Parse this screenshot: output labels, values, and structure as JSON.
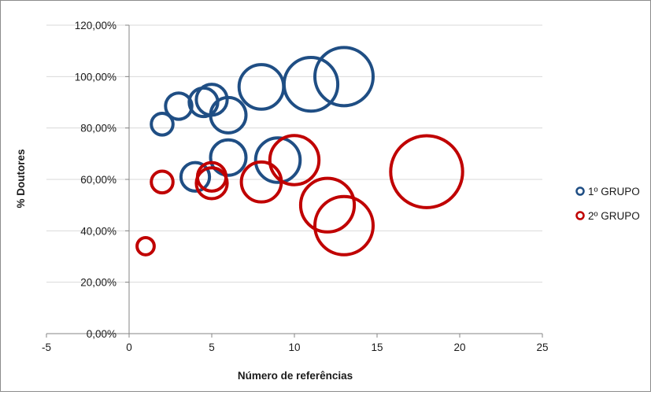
{
  "chart_data": {
    "type": "bubble",
    "title": "",
    "xlabel": "Número de referências",
    "ylabel": "% Doutores",
    "xlim": [
      -5,
      25
    ],
    "ylim": [
      0,
      120
    ],
    "x_ticks": [
      "-5",
      "0",
      "5",
      "10",
      "15",
      "20",
      "25"
    ],
    "y_ticks": [
      "0,00%",
      "20,00%",
      "40,00%",
      "60,00%",
      "80,00%",
      "100,00%",
      "120,00%"
    ],
    "grid": "horizontal",
    "legend_position": "right",
    "series": [
      {
        "name": "1º GRUPO",
        "color": "#1f4e84",
        "points": [
          {
            "x": 2,
            "y": 81.5,
            "size": 2
          },
          {
            "x": 3,
            "y": 88.5,
            "size": 3
          },
          {
            "x": 4,
            "y": 61,
            "size": 3.5
          },
          {
            "x": 4.5,
            "y": 90,
            "size": 3.5
          },
          {
            "x": 5,
            "y": 91,
            "size": 4
          },
          {
            "x": 6,
            "y": 85,
            "size": 5
          },
          {
            "x": 6,
            "y": 68.5,
            "size": 5
          },
          {
            "x": 8,
            "y": 96,
            "size": 7
          },
          {
            "x": 9,
            "y": 67.5,
            "size": 7
          },
          {
            "x": 11,
            "y": 97,
            "size": 9
          },
          {
            "x": 13,
            "y": 100,
            "size": 10
          }
        ]
      },
      {
        "name": "2º GRUPO",
        "color": "#c00000",
        "points": [
          {
            "x": 1,
            "y": 34,
            "size": 1
          },
          {
            "x": 2,
            "y": 59,
            "size": 2
          },
          {
            "x": 5,
            "y": 61,
            "size": 3.5
          },
          {
            "x": 5,
            "y": 58.5,
            "size": 4
          },
          {
            "x": 8,
            "y": 59,
            "size": 6
          },
          {
            "x": 10,
            "y": 67.5,
            "size": 8
          },
          {
            "x": 12,
            "y": 50,
            "size": 9
          },
          {
            "x": 13,
            "y": 42,
            "size": 10
          },
          {
            "x": 18,
            "y": 63,
            "size": 13
          }
        ]
      }
    ]
  }
}
